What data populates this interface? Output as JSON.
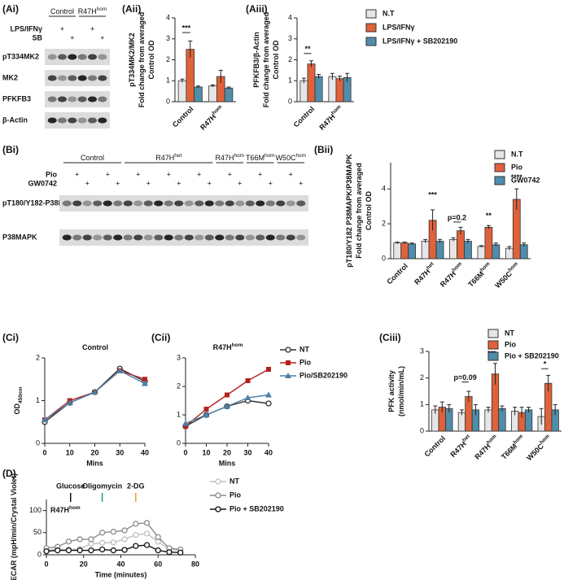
{
  "blots": [
    {
      "label": "(Ai)",
      "groups": [
        {
          "name": "Control"
        },
        {
          "name": "R47H",
          "sup": "hom"
        }
      ],
      "treatments": [
        {
          "name": "LPS/IFNγ",
          "marks": [
            null,
            "+",
            null,
            null,
            "+",
            null
          ]
        },
        {
          "name": "SB",
          "marks": [
            null,
            null,
            "+",
            null,
            null,
            "+"
          ]
        }
      ],
      "bands": [
        "pT334MK2",
        "MK2",
        "PFKFB3",
        "β-Actin"
      ]
    },
    {
      "label": "(Bi)",
      "groups": [
        {
          "name": "Control"
        },
        {
          "name": "R47H",
          "sup": "het"
        },
        {
          "name": "R47H",
          "sup": "hom"
        },
        {
          "name": "T66M",
          "sup": "hom"
        },
        {
          "name": "W50C",
          "sup": "hom"
        }
      ],
      "treatments": [
        {
          "name": "Pio",
          "marks": [
            null,
            "+",
            null,
            null,
            "+",
            null,
            null,
            "+",
            null,
            null,
            "+",
            null,
            null,
            "+",
            null,
            null,
            "+",
            null,
            null,
            "+",
            null,
            null,
            "+",
            null
          ]
        },
        {
          "name": "GW0742",
          "marks": [
            null,
            null,
            "+",
            null,
            null,
            "+",
            null,
            null,
            "+",
            null,
            null,
            "+",
            null,
            null,
            "+",
            null,
            null,
            "+",
            null,
            null,
            "+",
            null,
            null,
            "+"
          ]
        }
      ],
      "bands": [
        "pT180/Y182-P38MAPK",
        "P38MAPK"
      ]
    }
  ],
  "chart_data": [
    {
      "type": "bar",
      "label": "(Aii)",
      "y_label": [
        "pT334MK2/MK2",
        "Fold change from averaged",
        "Control OD"
      ],
      "categories": [
        "Control",
        "R47H"
      ],
      "category_superscripts": [
        null,
        "hom"
      ],
      "series": [
        {
          "color": "#e6e6e6",
          "values": [
            1.0,
            0.75
          ],
          "errors": [
            0.08,
            0.05
          ]
        },
        {
          "color": "#e0623a",
          "values": [
            2.5,
            1.2
          ],
          "errors": [
            0.4,
            0.3
          ]
        },
        {
          "color": "#4f8dab",
          "values": [
            0.7,
            0.65
          ],
          "errors": [
            0.05,
            0.05
          ]
        }
      ],
      "ylim": [
        0,
        4
      ],
      "yticks": [
        0,
        1,
        2,
        3,
        4
      ],
      "annotations": [
        "***"
      ]
    },
    {
      "type": "bar",
      "label": "(Aiii)",
      "y_label": [
        "PFKFB3/β-Actin",
        "Fold change from averaged",
        "Control OD"
      ],
      "categories": [
        "Control",
        "R47H"
      ],
      "category_superscripts": [
        null,
        "hom"
      ],
      "series": [
        {
          "name": "N.T",
          "color": "#e6e6e6",
          "values": [
            1.0,
            1.2
          ],
          "errors": [
            0.12,
            0.15
          ]
        },
        {
          "name": "LPS/IFNγ",
          "color": "#e0623a",
          "values": [
            1.8,
            1.1
          ],
          "errors": [
            0.15,
            0.12
          ]
        },
        {
          "name": "LPS/IFNγ + SB202190",
          "color": "#4f8dab",
          "values": [
            1.2,
            1.15
          ],
          "errors": [
            0.1,
            0.2
          ]
        }
      ],
      "ylim": [
        0,
        4
      ],
      "yticks": [
        0,
        1,
        2,
        3,
        4
      ],
      "annotations": [
        "**"
      ]
    },
    {
      "type": "bar",
      "label": "(Bii)",
      "y_label": [
        "pT180/Y182 P38MAPK/P38MAPK",
        "Fold change from averaged",
        "Control OD"
      ],
      "categories": [
        "Control",
        "R47H",
        "R47H",
        "T66M",
        "W50C"
      ],
      "category_superscripts": [
        null,
        "het",
        "hom",
        "hom",
        "hom"
      ],
      "series": [
        {
          "name": "N.T",
          "color": "#e6e6e6",
          "values": [
            0.9,
            1.0,
            1.1,
            0.7,
            0.6
          ],
          "errors": [
            0.05,
            0.1,
            0.1,
            0.05,
            0.1
          ]
        },
        {
          "name": "Pio",
          "color": "#e0623a",
          "values": [
            0.9,
            2.2,
            1.6,
            1.8,
            3.4
          ],
          "errors": [
            0.05,
            0.6,
            0.2,
            0.1,
            0.6
          ]
        },
        {
          "name": "GW0742",
          "color": "#4f8dab",
          "values": [
            0.85,
            1.0,
            1.0,
            0.8,
            0.8
          ],
          "errors": [
            0.05,
            0.1,
            0.1,
            0.1,
            0.1
          ]
        }
      ],
      "ylim": [
        0,
        5.5
      ],
      "yticks": [
        0,
        2,
        4
      ],
      "annotations": [
        "***",
        "p=0.2",
        "**",
        "****"
      ]
    },
    {
      "type": "line",
      "label": "(Ci)",
      "title": "Control",
      "y_label": [
        "OD"
      ],
      "y_label_sub": "450nm",
      "x_label": "Mins",
      "x": [
        0,
        10,
        20,
        30,
        40
      ],
      "series": [
        {
          "color": "#333333",
          "marker": "open-circle",
          "values": [
            0.5,
            0.95,
            1.2,
            1.75,
            1.45
          ]
        },
        {
          "color": "#b22222",
          "marker": "square",
          "values": [
            0.55,
            1.0,
            1.2,
            1.7,
            1.5
          ]
        },
        {
          "color": "#4a7fa8",
          "marker": "triangle",
          "values": [
            0.55,
            0.95,
            1.2,
            1.7,
            1.4
          ]
        }
      ],
      "xlim": [
        0,
        40
      ],
      "xticks": [
        0,
        10,
        20,
        30,
        40
      ],
      "ylim": [
        0,
        2
      ],
      "yticks": [
        0,
        1,
        2
      ]
    },
    {
      "type": "line",
      "label": "(Cii)",
      "title": "R47H",
      "title_sup": "hom",
      "x_label": "Mins",
      "x": [
        0,
        10,
        20,
        30,
        40
      ],
      "series": [
        {
          "name": "NT",
          "color": "#333333",
          "marker": "open-circle",
          "values": [
            0.6,
            1.0,
            1.3,
            1.5,
            1.4
          ]
        },
        {
          "name": "Pio",
          "color": "#b22222",
          "marker": "square",
          "values": [
            0.6,
            1.2,
            1.7,
            2.2,
            2.6
          ]
        },
        {
          "name": "Pio/SB202190",
          "color": "#4a7fa8",
          "marker": "triangle",
          "values": [
            0.7,
            1.0,
            1.3,
            1.6,
            1.7
          ]
        }
      ],
      "xlim": [
        0,
        40
      ],
      "xticks": [
        0,
        10,
        20,
        30,
        40
      ],
      "ylim": [
        0,
        3
      ],
      "yticks": [
        0,
        1,
        2,
        3
      ]
    },
    {
      "type": "bar",
      "label": "(Ciii)",
      "y_label": [
        "PFK activity",
        "(nmol/min/mL)"
      ],
      "categories": [
        "Control",
        "R47H",
        "R47H",
        "T66M",
        "W50C"
      ],
      "category_superscripts": [
        null,
        "het",
        "hom",
        "hom",
        "hom"
      ],
      "series": [
        {
          "name": "NT",
          "color": "#e6e6e6",
          "values": [
            0.8,
            0.7,
            0.8,
            0.75,
            0.55
          ],
          "errors": [
            0.15,
            0.1,
            0.1,
            0.15,
            0.3
          ]
        },
        {
          "name": "Pio",
          "color": "#e0623a",
          "values": [
            0.9,
            1.3,
            2.15,
            0.7,
            1.8
          ],
          "errors": [
            0.2,
            0.2,
            0.4,
            0.2,
            0.3
          ]
        },
        {
          "name": "Pio + SB202190",
          "color": "#4f8dab",
          "values": [
            0.85,
            0.8,
            0.85,
            0.8,
            0.8
          ],
          "errors": [
            0.15,
            0.2,
            0.1,
            0.1,
            0.2
          ]
        }
      ],
      "ylim": [
        0,
        3
      ],
      "yticks": [
        0,
        1,
        2,
        3
      ],
      "annotations": [
        "p=0.09",
        "***",
        "*"
      ]
    },
    {
      "type": "line",
      "label": "(D)",
      "y_label": [
        "ECAR (mpH/min/Crystal Violet)"
      ],
      "x_label": "Time (minutes)",
      "inset_label": "R47H",
      "inset_label_sup": "hom",
      "injections": [
        {
          "name": "Glucose",
          "time": 13,
          "color": "#111111"
        },
        {
          "name": "Oligomycin",
          "time": 30,
          "color": "#2e9e6a"
        },
        {
          "name": "2-DG",
          "time": 48,
          "color": "#e0a020"
        }
      ],
      "x": [
        0,
        6,
        12,
        18,
        24,
        30,
        36,
        42,
        48,
        54,
        60,
        66,
        72
      ],
      "series": [
        {
          "name": "NT",
          "color": "#c0c0c0",
          "marker": "open-circle",
          "values": [
            10,
            13,
            12,
            13,
            25,
            27,
            28,
            35,
            45,
            48,
            30,
            12,
            10
          ]
        },
        {
          "name": "Pio",
          "color": "#8c8c8c",
          "marker": "open-circle",
          "values": [
            15,
            18,
            30,
            35,
            35,
            50,
            52,
            55,
            70,
            72,
            40,
            15,
            12
          ]
        },
        {
          "name": "Pio + SB202190",
          "color": "#111111",
          "marker": "open-circle",
          "values": [
            8,
            10,
            10,
            10,
            10,
            12,
            10,
            11,
            20,
            22,
            10,
            6,
            5
          ]
        }
      ],
      "xlim": [
        0,
        80
      ],
      "xticks": [
        0,
        20,
        40,
        60,
        80
      ],
      "ylim": [
        0,
        125
      ],
      "yticks": [
        0,
        50,
        100
      ]
    }
  ]
}
